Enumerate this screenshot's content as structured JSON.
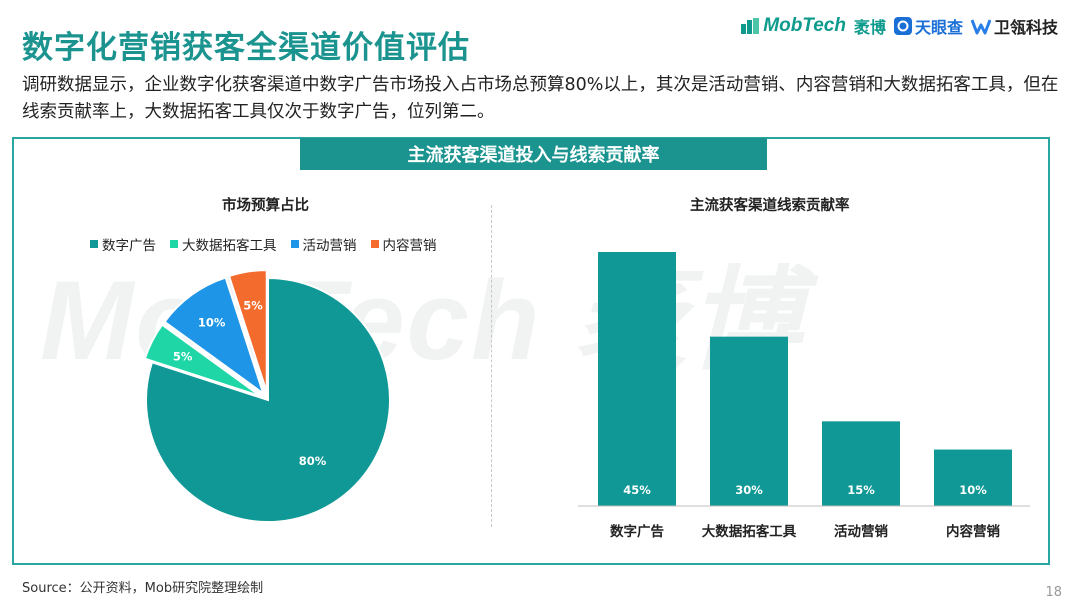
{
  "header": {
    "title": "数字化营销获客全渠道价值评估",
    "brands": [
      "MobTech",
      "袤博",
      "天眼查",
      "卫瓴科技"
    ]
  },
  "summary": "调研数据显示，企业数字化获客渠道中数字广告市场投入占市场总预算80%以上，其次是活动营销、内容营销和大数据拓客工具，但在线索贡献率上，大数据拓客工具仅次于数字广告，位列第二。",
  "panel": {
    "banner": "主流获客渠道投入与线索贡献率",
    "watermark": "MobTech 袤博"
  },
  "footer": {
    "source": "Source：公开资料，Mob研究院整理绘制",
    "page": "18"
  },
  "colors": {
    "teal": "#0f9896",
    "mint": "#1ed6a6",
    "blue": "#1e95e6",
    "orange": "#f46b2e",
    "title": "#1b9490"
  },
  "chart_data": [
    {
      "type": "pie",
      "title": "市场预算占比",
      "legend_position": "top",
      "categories": [
        "数字广告",
        "大数据拓客工具",
        "活动营销",
        "内容营销"
      ],
      "values": [
        80,
        5,
        10,
        5
      ],
      "labels": [
        "80%",
        "5%",
        "10%",
        "5%"
      ],
      "colors": [
        "#0f9896",
        "#1ed6a6",
        "#1e95e6",
        "#f46b2e"
      ]
    },
    {
      "type": "bar",
      "title": "主流获客渠道线索贡献率",
      "categories": [
        "数字广告",
        "大数据拓客工具",
        "活动营销",
        "内容营销"
      ],
      "values": [
        45,
        30,
        15,
        10
      ],
      "labels": [
        "45%",
        "30%",
        "15%",
        "10%"
      ],
      "ylim": [
        0,
        50
      ],
      "grid": false,
      "color": "#0f9896"
    }
  ]
}
